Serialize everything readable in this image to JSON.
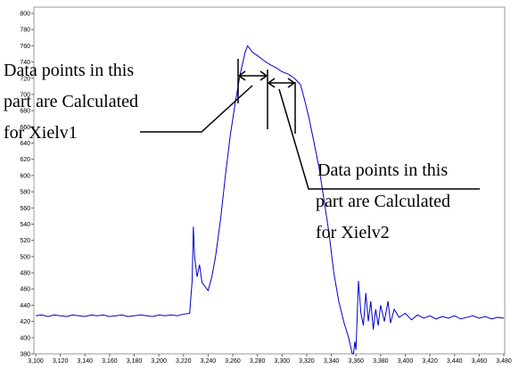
{
  "chart_data": {
    "type": "line",
    "x": [
      3100,
      3105,
      3110,
      3115,
      3120,
      3125,
      3130,
      3135,
      3140,
      3145,
      3150,
      3155,
      3160,
      3165,
      3170,
      3175,
      3180,
      3185,
      3190,
      3195,
      3200,
      3205,
      3210,
      3215,
      3220,
      3225,
      3227,
      3228,
      3229,
      3231,
      3233,
      3235,
      3238,
      3240,
      3243,
      3246,
      3250,
      3254,
      3258,
      3262,
      3266,
      3270,
      3272,
      3276,
      3280,
      3285,
      3290,
      3295,
      3300,
      3305,
      3310,
      3315,
      3318,
      3322,
      3326,
      3330,
      3334,
      3338,
      3342,
      3346,
      3350,
      3354,
      3357,
      3358,
      3359,
      3360,
      3362,
      3364,
      3366,
      3368,
      3370,
      3372,
      3374,
      3376,
      3378,
      3380,
      3383,
      3386,
      3388,
      3391,
      3395,
      3400,
      3405,
      3410,
      3415,
      3420,
      3425,
      3430,
      3435,
      3440,
      3445,
      3450,
      3455,
      3460,
      3465,
      3470,
      3475,
      3480
    ],
    "series": [
      {
        "color": "#0000cc",
        "values": [
          427,
          428,
          426,
          428,
          427,
          426,
          428,
          427,
          426,
          428,
          427,
          428,
          426,
          427,
          428,
          426,
          427,
          428,
          427,
          426,
          428,
          427,
          428,
          427,
          429,
          430,
          470,
          537,
          500,
          475,
          490,
          468,
          462,
          458,
          475,
          500,
          545,
          600,
          650,
          690,
          725,
          752,
          760,
          752,
          748,
          742,
          737,
          733,
          728,
          725,
          720,
          712,
          695,
          670,
          640,
          610,
          570,
          530,
          480,
          445,
          420,
          400,
          380,
          380,
          395,
          385,
          470,
          430,
          415,
          455,
          420,
          445,
          410,
          435,
          415,
          440,
          420,
          445,
          418,
          435,
          425,
          430,
          422,
          428,
          424,
          427,
          423,
          426,
          424,
          427,
          423,
          425,
          427,
          424,
          426,
          423,
          425,
          424
        ]
      }
    ],
    "xlim": [
      3100,
      3480
    ],
    "xticks": [
      {
        "value": 3100,
        "label": "3,100"
      },
      {
        "value": 3120,
        "label": "3,120"
      },
      {
        "value": 3140,
        "label": "3,140"
      },
      {
        "value": 3160,
        "label": "3,160"
      },
      {
        "value": 3180,
        "label": "3,180"
      },
      {
        "value": 3200,
        "label": "3,200"
      },
      {
        "value": 3220,
        "label": "3,220"
      },
      {
        "value": 3240,
        "label": "3,240"
      },
      {
        "value": 3260,
        "label": "3,260"
      },
      {
        "value": 3280,
        "label": "3,280"
      },
      {
        "value": 3300,
        "label": "3,300"
      },
      {
        "value": 3320,
        "label": "3,320"
      },
      {
        "value": 3340,
        "label": "3,340"
      },
      {
        "value": 3360,
        "label": "3,360"
      },
      {
        "value": 3380,
        "label": "3,380"
      },
      {
        "value": 3400,
        "label": "3,400"
      },
      {
        "value": 3420,
        "label": "3,420"
      },
      {
        "value": 3440,
        "label": "3,440"
      },
      {
        "value": 3460,
        "label": "3,460"
      },
      {
        "value": 3480,
        "label": "3,480"
      }
    ],
    "ylim": [
      380,
      800
    ],
    "yticks": [
      380,
      400,
      420,
      440,
      460,
      480,
      500,
      520,
      540,
      560,
      580,
      600,
      620,
      640,
      660,
      680,
      700,
      720,
      740,
      760,
      780,
      800
    ],
    "grid": false,
    "annotations": [
      {
        "lines": [
          "Data points in this",
          "part are Calculated",
          "for Xielv1"
        ]
      },
      {
        "lines": [
          "Data points in this",
          "part are Calculated",
          "for Xielv2"
        ]
      }
    ]
  }
}
